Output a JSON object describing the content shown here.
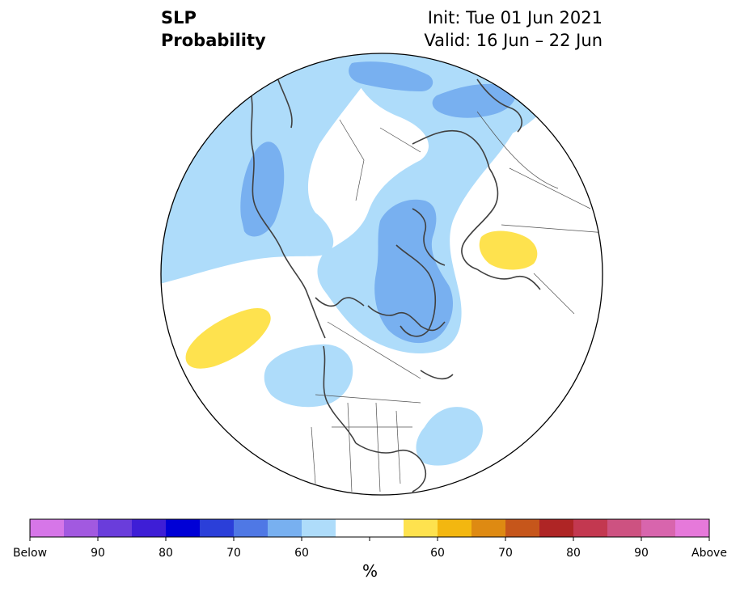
{
  "title": {
    "left_line1": "SLP",
    "left_line2": "Probability",
    "right_line1": "Init: Tue 01 Jun 2021",
    "right_line2": "Valid: 16 Jun – 22 Jun"
  },
  "colorbar": {
    "units": "%",
    "colors": [
      "#d676e8",
      "#a259e0",
      "#6a3ddb",
      "#3e1ed6",
      "#0000d6",
      "#2b3fd9",
      "#4f78e5",
      "#78b0f0",
      "#aedcfa",
      "#ffffff",
      "#ffffff",
      "#fee24e",
      "#f3b710",
      "#de8a12",
      "#c6561b",
      "#af2525",
      "#c33850",
      "#cd5281",
      "#d865ad",
      "#e679da"
    ],
    "tick_labels": [
      "Below",
      "90",
      "80",
      "70",
      "60",
      "60",
      "70",
      "80",
      "90",
      "Above"
    ]
  },
  "map": {
    "projection": "north-polar-stereographic",
    "background": "#ffffff",
    "coast_color": "#404040",
    "shading_levels": {
      "light_blue": "#aedcfa",
      "medium_blue": "#78b0f0",
      "yellow": "#fee24e"
    }
  }
}
